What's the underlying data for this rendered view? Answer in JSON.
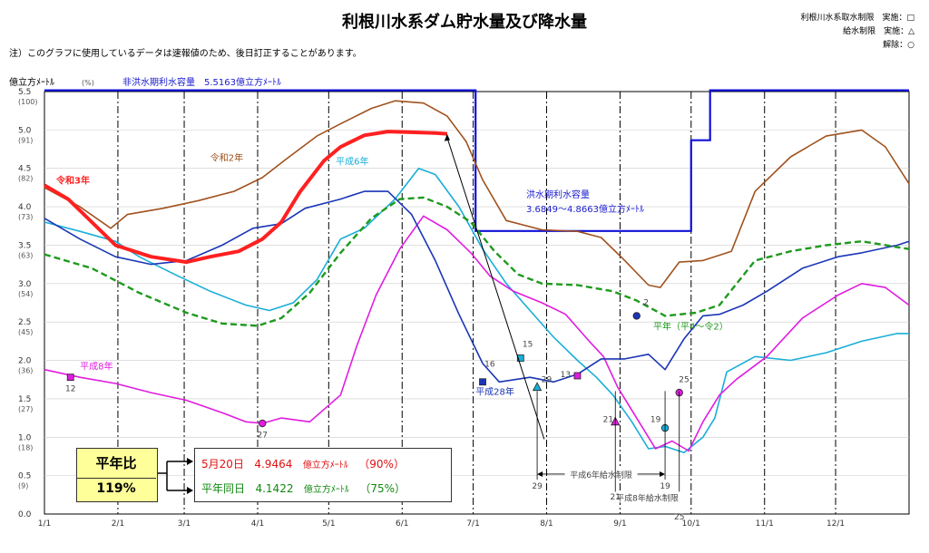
{
  "header": {
    "title": "利根川水系ダム貯水量及び降水量",
    "note": "注）このグラフに使用しているデータは速報値のため、後日訂正することがあります。",
    "legend": [
      {
        "text": "利根川水系取水制限　実施：□"
      },
      {
        "text": "給水制限　実施：△"
      },
      {
        "text": "解除：○"
      }
    ]
  },
  "chart_data": {
    "type": "line",
    "ylabel": "億立方ﾒｰﾄﾙ",
    "ylabel_pct": "(%)",
    "ylim": [
      0,
      5.5
    ],
    "yticks": [
      {
        "v": "0.0",
        "p": ""
      },
      {
        "v": "0.5",
        "p": "(9)"
      },
      {
        "v": "1.0",
        "p": "(18)"
      },
      {
        "v": "1.5",
        "p": "(27)"
      },
      {
        "v": "2.0",
        "p": "(36)"
      },
      {
        "v": "2.5",
        "p": "(45)"
      },
      {
        "v": "3.0",
        "p": "(54)"
      },
      {
        "v": "3.5",
        "p": "(63)"
      },
      {
        "v": "4.0",
        "p": "(73)"
      },
      {
        "v": "4.5",
        "p": "(82)"
      },
      {
        "v": "5.0",
        "p": "(91)"
      },
      {
        "v": "5.5",
        "p": "(100)"
      }
    ],
    "xticks": [
      "1/1",
      "2/1",
      "3/1",
      "4/1",
      "5/1",
      "6/1",
      "7/1",
      "8/1",
      "9/1",
      "10/1",
      "11/1",
      "12/1"
    ],
    "xlim": [
      0,
      365
    ],
    "capacity_label_dry": "非洪水期利水容量　5.5163億立方ﾒｰﾄﾙ",
    "capacity_label_flood_1": "洪水期利水容量",
    "capacity_label_flood_2": "3.6849～4.8663億立方ﾒｰﾄﾙ",
    "capacity": [
      [
        0,
        5.516
      ],
      [
        182,
        5.516
      ],
      [
        182,
        3.685
      ],
      [
        273,
        3.685
      ],
      [
        273,
        4.866
      ],
      [
        281,
        4.866
      ],
      [
        281,
        5.516
      ],
      [
        365,
        5.516
      ]
    ],
    "series": [
      {
        "name": "令和3年",
        "color": "#ff2020",
        "width": 4,
        "dash": "",
        "points": [
          [
            0,
            4.28
          ],
          [
            10,
            4.1
          ],
          [
            20,
            3.8
          ],
          [
            30,
            3.5
          ],
          [
            45,
            3.35
          ],
          [
            60,
            3.28
          ],
          [
            70,
            3.35
          ],
          [
            82,
            3.42
          ],
          [
            92,
            3.58
          ],
          [
            100,
            3.8
          ],
          [
            108,
            4.2
          ],
          [
            118,
            4.6
          ],
          [
            125,
            4.78
          ],
          [
            135,
            4.93
          ],
          [
            145,
            4.98
          ],
          [
            155,
            4.97
          ],
          [
            165,
            4.96
          ],
          [
            170,
            4.95
          ]
        ]
      },
      {
        "name": "令和2年",
        "color": "#a0521e",
        "width": 1.6,
        "dash": "",
        "points": [
          [
            0,
            4.25
          ],
          [
            15,
            4.0
          ],
          [
            28,
            3.72
          ],
          [
            35,
            3.9
          ],
          [
            50,
            3.98
          ],
          [
            65,
            4.08
          ],
          [
            80,
            4.2
          ],
          [
            92,
            4.38
          ],
          [
            102,
            4.62
          ],
          [
            115,
            4.92
          ],
          [
            125,
            5.08
          ],
          [
            138,
            5.28
          ],
          [
            148,
            5.38
          ],
          [
            160,
            5.35
          ],
          [
            170,
            5.18
          ],
          [
            178,
            4.85
          ],
          [
            185,
            4.35
          ],
          [
            195,
            3.82
          ],
          [
            210,
            3.7
          ],
          [
            225,
            3.68
          ],
          [
            235,
            3.6
          ],
          [
            245,
            3.3
          ],
          [
            255,
            2.98
          ],
          [
            260,
            2.95
          ],
          [
            268,
            3.28
          ],
          [
            278,
            3.3
          ],
          [
            290,
            3.42
          ],
          [
            300,
            4.2
          ],
          [
            315,
            4.65
          ],
          [
            330,
            4.92
          ],
          [
            345,
            5.0
          ],
          [
            355,
            4.78
          ],
          [
            365,
            4.3
          ]
        ]
      },
      {
        "name": "平成6年",
        "color": "#19aed8",
        "width": 1.6,
        "dash": "",
        "points": [
          [
            0,
            3.8
          ],
          [
            15,
            3.68
          ],
          [
            30,
            3.55
          ],
          [
            40,
            3.35
          ],
          [
            55,
            3.12
          ],
          [
            70,
            2.9
          ],
          [
            85,
            2.72
          ],
          [
            95,
            2.65
          ],
          [
            105,
            2.75
          ],
          [
            115,
            3.05
          ],
          [
            125,
            3.58
          ],
          [
            135,
            3.72
          ],
          [
            148,
            4.1
          ],
          [
            158,
            4.5
          ],
          [
            165,
            4.42
          ],
          [
            175,
            4.0
          ],
          [
            185,
            3.45
          ],
          [
            195,
            3.0
          ],
          [
            205,
            2.65
          ],
          [
            215,
            2.3
          ],
          [
            225,
            2.0
          ],
          [
            233,
            1.78
          ],
          [
            240,
            1.55
          ],
          [
            248,
            1.2
          ],
          [
            255,
            0.85
          ],
          [
            262,
            0.88
          ],
          [
            270,
            0.8
          ],
          [
            278,
            1.0
          ],
          [
            283,
            1.25
          ],
          [
            288,
            1.85
          ],
          [
            300,
            2.05
          ],
          [
            315,
            2.0
          ],
          [
            330,
            2.1
          ],
          [
            345,
            2.25
          ],
          [
            360,
            2.35
          ],
          [
            365,
            2.35
          ]
        ]
      },
      {
        "name": "平成8年",
        "color": "#e01ce0",
        "width": 1.6,
        "dash": "",
        "points": [
          [
            0,
            1.88
          ],
          [
            15,
            1.78
          ],
          [
            30,
            1.7
          ],
          [
            45,
            1.58
          ],
          [
            60,
            1.48
          ],
          [
            75,
            1.32
          ],
          [
            85,
            1.2
          ],
          [
            92,
            1.18
          ],
          [
            100,
            1.25
          ],
          [
            112,
            1.2
          ],
          [
            125,
            1.55
          ],
          [
            132,
            2.2
          ],
          [
            140,
            2.85
          ],
          [
            150,
            3.45
          ],
          [
            160,
            3.88
          ],
          [
            170,
            3.7
          ],
          [
            180,
            3.4
          ],
          [
            188,
            3.1
          ],
          [
            198,
            2.9
          ],
          [
            210,
            2.75
          ],
          [
            220,
            2.6
          ],
          [
            230,
            2.25
          ],
          [
            236,
            2.05
          ],
          [
            242,
            1.65
          ],
          [
            250,
            1.25
          ],
          [
            258,
            0.85
          ],
          [
            265,
            0.95
          ],
          [
            272,
            0.82
          ],
          [
            278,
            1.2
          ],
          [
            285,
            1.55
          ],
          [
            292,
            1.75
          ],
          [
            305,
            2.05
          ],
          [
            320,
            2.55
          ],
          [
            335,
            2.85
          ],
          [
            345,
            3.0
          ],
          [
            355,
            2.95
          ],
          [
            365,
            2.72
          ]
        ]
      },
      {
        "name": "平成28年",
        "color": "#1a36b6",
        "width": 1.6,
        "dash": "",
        "points": [
          [
            0,
            3.85
          ],
          [
            15,
            3.58
          ],
          [
            30,
            3.35
          ],
          [
            45,
            3.25
          ],
          [
            60,
            3.3
          ],
          [
            75,
            3.5
          ],
          [
            88,
            3.72
          ],
          [
            100,
            3.78
          ],
          [
            110,
            3.98
          ],
          [
            125,
            4.1
          ],
          [
            135,
            4.2
          ],
          [
            145,
            4.2
          ],
          [
            155,
            3.9
          ],
          [
            165,
            3.3
          ],
          [
            175,
            2.6
          ],
          [
            185,
            1.96
          ],
          [
            192,
            1.72
          ],
          [
            205,
            1.78
          ],
          [
            215,
            1.72
          ],
          [
            225,
            1.82
          ],
          [
            235,
            2.02
          ],
          [
            245,
            2.02
          ],
          [
            255,
            2.08
          ],
          [
            262,
            1.88
          ],
          [
            270,
            2.28
          ],
          [
            278,
            2.58
          ],
          [
            285,
            2.6
          ],
          [
            295,
            2.72
          ],
          [
            305,
            2.9
          ],
          [
            320,
            3.2
          ],
          [
            335,
            3.35
          ],
          [
            345,
            3.4
          ],
          [
            360,
            3.5
          ],
          [
            365,
            3.55
          ]
        ]
      },
      {
        "name": "平年（平4～令2）",
        "color": "#1e9a1e",
        "width": 2.4,
        "dash": "7 4",
        "points": [
          [
            0,
            3.38
          ],
          [
            20,
            3.2
          ],
          [
            40,
            2.88
          ],
          [
            60,
            2.62
          ],
          [
            75,
            2.48
          ],
          [
            90,
            2.45
          ],
          [
            100,
            2.55
          ],
          [
            112,
            2.88
          ],
          [
            125,
            3.4
          ],
          [
            138,
            3.85
          ],
          [
            150,
            4.1
          ],
          [
            160,
            4.12
          ],
          [
            170,
            4.0
          ],
          [
            180,
            3.8
          ],
          [
            190,
            3.42
          ],
          [
            200,
            3.12
          ],
          [
            210,
            3.0
          ],
          [
            225,
            2.98
          ],
          [
            240,
            2.9
          ],
          [
            250,
            2.78
          ],
          [
            262,
            2.58
          ],
          [
            275,
            2.62
          ],
          [
            285,
            2.72
          ],
          [
            300,
            3.3
          ],
          [
            315,
            3.42
          ],
          [
            330,
            3.5
          ],
          [
            345,
            3.55
          ],
          [
            365,
            3.45
          ]
        ]
      }
    ],
    "series_labels": [
      {
        "series": "令和3年",
        "text": "令和3年",
        "x": 5,
        "y": 4.3,
        "bold": true
      },
      {
        "series": "令和2年",
        "text": "令和2年",
        "x": 70,
        "y": 4.6,
        "bold": false
      },
      {
        "series": "平成6年",
        "text": "平成6年",
        "x": 123,
        "y": 4.55,
        "bold": false
      },
      {
        "series": "平成8年",
        "text": "平成8年",
        "x": 15,
        "y": 1.88,
        "bold": false
      },
      {
        "series": "平成28年",
        "text": "平成28年",
        "x": 182,
        "y": 1.55,
        "bold": false
      },
      {
        "series": "平年（平4～令2）",
        "text": "平年（平4～令2）",
        "x": 257,
        "y": 2.4,
        "bold": false
      }
    ],
    "markers": [
      {
        "shape": "square",
        "x": 11,
        "y": 1.78,
        "color": "#e01ce0",
        "label": "12",
        "lx": 11,
        "ly": 1.6
      },
      {
        "shape": "circle",
        "x": 92,
        "y": 1.18,
        "color": "#e01ce0",
        "label": "27",
        "lx": 92,
        "ly": 1.0
      },
      {
        "shape": "square",
        "x": 185,
        "y": 1.72,
        "color": "#1a36b6",
        "label": "16",
        "lx": 188,
        "ly": 1.92
      },
      {
        "shape": "square",
        "x": 201,
        "y": 2.03,
        "color": "#19aed8",
        "label": "15",
        "lx": 204,
        "ly": 2.18
      },
      {
        "shape": "triangle",
        "x": 208,
        "y": 1.65,
        "color": "#19aed8",
        "label": "29",
        "lx": 212,
        "ly": 1.72
      },
      {
        "shape": "square",
        "x": 225,
        "y": 1.8,
        "color": "#e01ce0",
        "label": "13",
        "lx": 220,
        "ly": 1.78
      },
      {
        "shape": "triangle",
        "x": 241,
        "y": 1.2,
        "color": "#e01ce0",
        "label": "21",
        "lx": 238,
        "ly": 1.2
      },
      {
        "shape": "circle",
        "x": 250,
        "y": 2.58,
        "color": "#1a36b6",
        "label": "2",
        "lx": 254,
        "ly": 2.72
      },
      {
        "shape": "circle",
        "x": 262,
        "y": 1.12,
        "color": "#19aed8",
        "label": "19",
        "lx": 258,
        "ly": 1.2
      },
      {
        "shape": "circle",
        "x": 268,
        "y": 1.58,
        "color": "#e01ce0",
        "label": "25",
        "lx": 270,
        "ly": 1.72
      }
    ],
    "restriction_spans": [
      {
        "from": 208,
        "to": 262,
        "y": 0.52,
        "text": "平成6年給水制限",
        "left_label": "29",
        "right_label": "19",
        "left_label_y": 0.52,
        "right_label_y": 0.52
      },
      {
        "from": 241,
        "to": 268,
        "y": 0.22,
        "text": "平成8年給水制限",
        "left_label": "21",
        "right_label": "25",
        "left_label_y": 0.38,
        "right_label_y": 0.12
      }
    ],
    "pointer": {
      "from": [
        170,
        4.95
      ],
      "to": [
        188,
        0.95
      ]
    }
  },
  "summary": {
    "ratio_label": "平年比",
    "ratio_value": "119%",
    "line1": {
      "date": "5月20日",
      "value": "4.9464",
      "unit": "億立方ﾒｰﾄﾙ",
      "pct": "（90%）"
    },
    "line2": {
      "date": "平年同日",
      "value": "4.1422",
      "unit": "億立方ﾒｰﾄﾙ",
      "pct": "（75%）"
    }
  }
}
